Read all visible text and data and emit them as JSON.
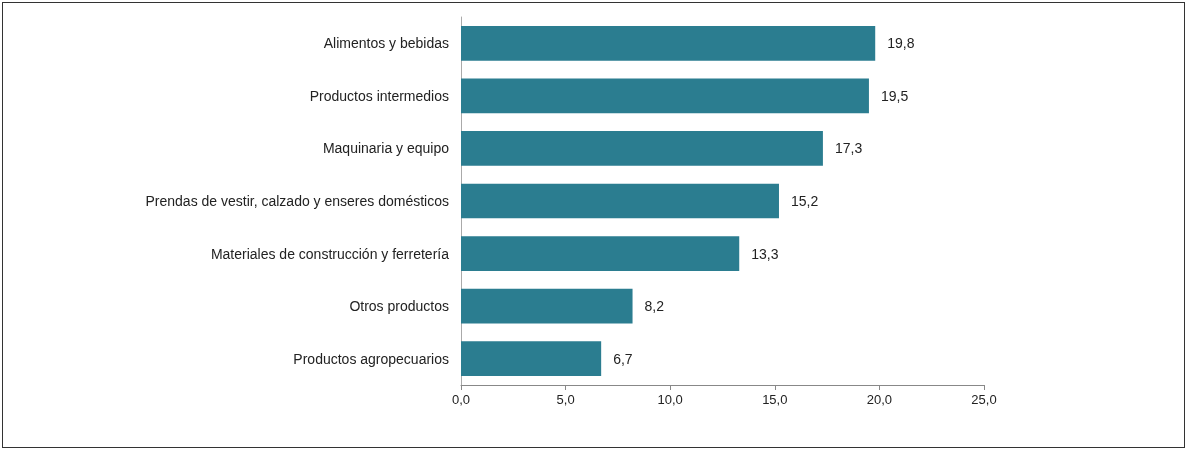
{
  "chart_data": {
    "type": "bar",
    "orientation": "horizontal",
    "categories": [
      "Alimentos y bebidas",
      "Productos intermedios",
      "Maquinaria y equipo",
      "Prendas de vestir, calzado y enseres domésticos",
      "Materiales de construcción y ferretería",
      "Otros productos",
      "Productos agropecuarios"
    ],
    "values": [
      19.8,
      19.5,
      17.3,
      15.2,
      13.3,
      8.2,
      6.7
    ],
    "value_labels": [
      "19,8",
      "19,5",
      "17,3",
      "15,2",
      "13,3",
      "8,2",
      "6,7"
    ],
    "color": "#2b7d90",
    "xlim": [
      0,
      25
    ],
    "xticks": [
      {
        "value": 0,
        "label": "0,0"
      },
      {
        "value": 5,
        "label": "5,0"
      },
      {
        "value": 10,
        "label": "10,0"
      },
      {
        "value": 15,
        "label": "15,0"
      },
      {
        "value": 20,
        "label": "20,0"
      },
      {
        "value": 25,
        "label": "25,0"
      }
    ],
    "grid": false
  }
}
